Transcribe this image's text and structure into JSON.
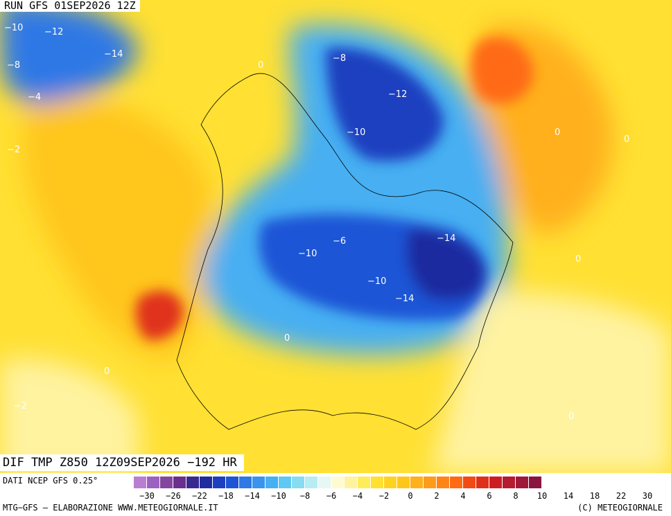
{
  "header": {
    "run": "RUN GFS 01SEP2026 12Z"
  },
  "title": "DIF TMP Z850 12Z09SEP2026 −192 HR",
  "legend": {
    "source": "DATI NCEP GFS 0.25°",
    "colors": [
      "#b87fd0",
      "#9c62c0",
      "#84479f",
      "#6b2f8e",
      "#3a2a8f",
      "#1f2ca0",
      "#1e3fc0",
      "#1e55d6",
      "#2f78e6",
      "#3a94ee",
      "#47aff2",
      "#5fc8f3",
      "#86dcf1",
      "#b6ecf2",
      "#e6f7f4",
      "#fffbd0",
      "#fff3a0",
      "#ffec5a",
      "#ffe033",
      "#ffd21f",
      "#ffc61a",
      "#ffb01a",
      "#ff9b1a",
      "#ff8416",
      "#ff6a12",
      "#f24a14",
      "#e0301a",
      "#cc1e22",
      "#b51a2e",
      "#a01838",
      "#8a1640"
    ],
    "ticks": [
      "−30",
      "−26",
      "−22",
      "−18",
      "−14",
      "−10",
      "−8",
      "−6",
      "−4",
      "−2",
      "0",
      "2",
      "4",
      "6",
      "8",
      "10",
      "14",
      "18",
      "22",
      "30"
    ]
  },
  "footer": {
    "left": "MTG−GFS — ELABORAZIONE WWW.METEOGIORNALE.IT",
    "right": "(C) METEOGIORNALE"
  },
  "map_labels": [
    "−10",
    "−12",
    "−8",
    "−6",
    "−4",
    "−2",
    "−14",
    "0",
    "−2",
    "−4",
    "−6",
    "−8",
    "−10",
    "−12",
    "−14"
  ]
}
